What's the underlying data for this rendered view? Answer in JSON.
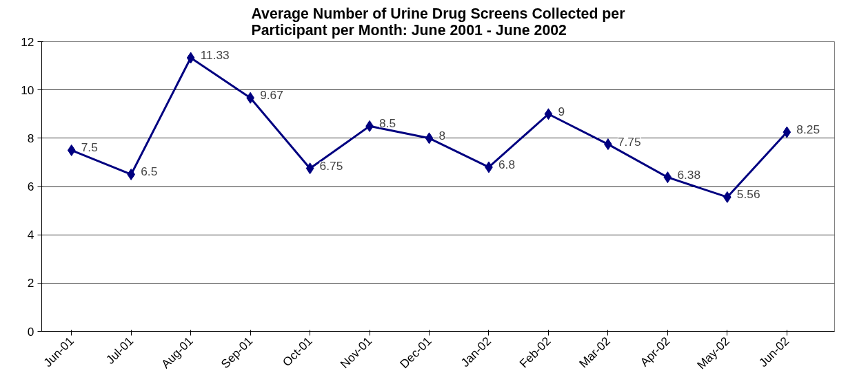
{
  "chart_data": {
    "type": "line",
    "title": "Average Number of Urine Drug Screens Collected per\nParticipant per Month: June 2001 - June 2002",
    "categories": [
      "Jun-01",
      "Jul-01",
      "Aug-01",
      "Sep-01",
      "Oct-01",
      "Nov-01",
      "Dec-01",
      "Jan-02",
      "Feb-02",
      "Mar-02",
      "Apr-02",
      "May-02",
      "Jun-02"
    ],
    "series": [
      {
        "color": "#000080",
        "values": [
          7.5,
          6.5,
          11.33,
          9.67,
          6.75,
          8.5,
          8,
          6.8,
          9,
          7.75,
          6.38,
          5.56,
          8.25
        ]
      }
    ],
    "ylim": [
      0,
      12
    ],
    "yticks": [
      0,
      2,
      4,
      6,
      8,
      10,
      12
    ],
    "grid": "y",
    "marker": "diamond",
    "line_style": "solid",
    "data_labels": true
  }
}
